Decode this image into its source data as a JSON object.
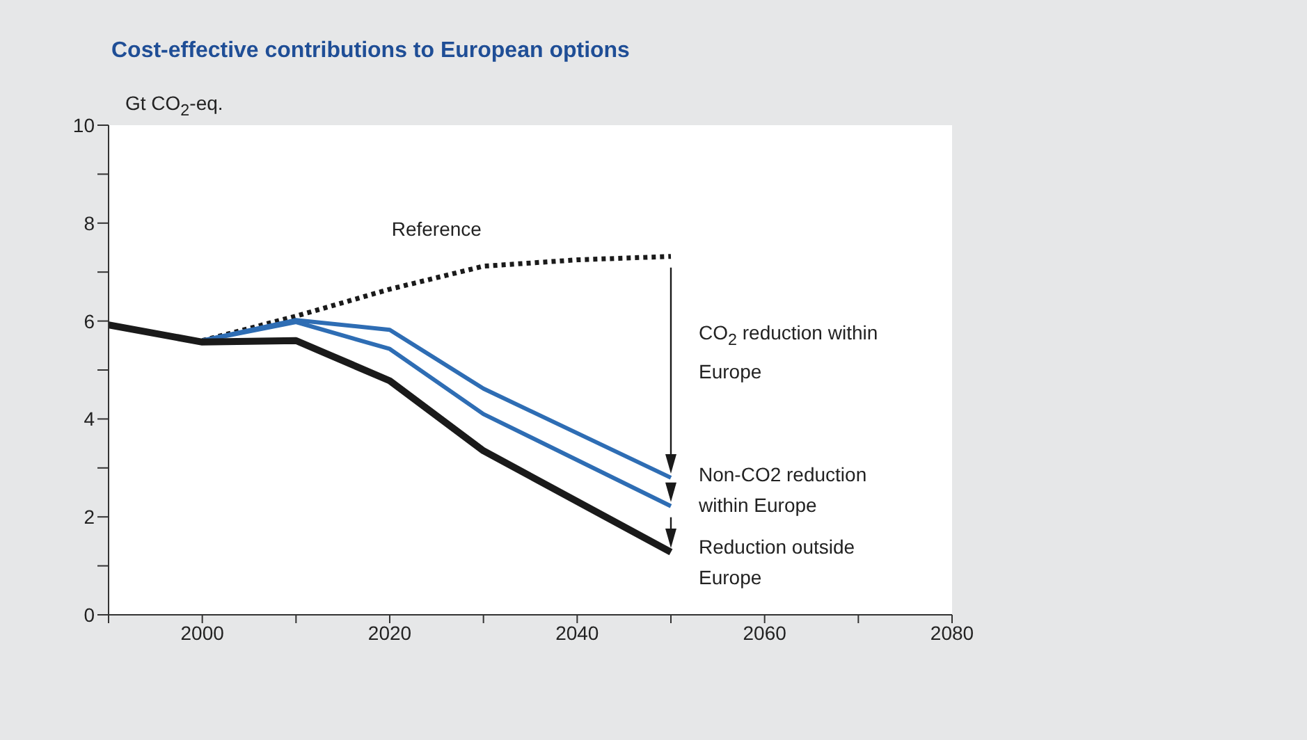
{
  "chart_data": {
    "type": "line",
    "title": "Cost-effective contributions to European options",
    "ylabel": "Gt CO$_{2}$-eq.",
    "xlim": [
      1990,
      2080
    ],
    "xticks": [
      {
        "value": 1990,
        "label": null
      },
      2000,
      {
        "value": 2010,
        "label": null
      },
      2020,
      {
        "value": 2030,
        "label": null
      },
      2040,
      {
        "value": 2050,
        "label": null
      },
      2060,
      {
        "value": 2070,
        "label": null
      },
      2080
    ],
    "ylim": [
      0,
      10
    ],
    "yticks": [
      0,
      {
        "value": 1,
        "label": null
      },
      2,
      {
        "value": 3,
        "label": null
      },
      4,
      {
        "value": 5,
        "label": null
      },
      6,
      {
        "value": 7,
        "label": null
      },
      8,
      {
        "value": 9,
        "label": null
      },
      10
    ],
    "grid": false,
    "legend": false,
    "marker": "none",
    "series": [
      {
        "name": "Reference",
        "color": "#1a1a1a",
        "line_style": "dotted",
        "x": [
          2000,
          2010,
          2020,
          2030,
          2040,
          2050
        ],
        "values": [
          5.6,
          6.1,
          6.65,
          7.12,
          7.25,
          7.32
        ]
      },
      {
        "color": "#2e6db4",
        "line_style": "solid",
        "x": [
          2000,
          2010,
          2020,
          2030,
          2050
        ],
        "values": [
          5.6,
          6.02,
          5.82,
          4.62,
          2.8
        ]
      },
      {
        "color": "#2e6db4",
        "line_style": "solid",
        "x": [
          2000,
          2010,
          2020,
          2030,
          2050
        ],
        "values": [
          5.6,
          5.98,
          5.43,
          4.1,
          2.22
        ]
      },
      {
        "color": "#1a1a1a",
        "line_style": "solid",
        "x": [
          1990,
          2000,
          2010,
          2020,
          2030,
          2050
        ],
        "values": [
          5.92,
          5.57,
          5.6,
          4.78,
          3.35,
          1.28
        ]
      }
    ],
    "annotations": [
      "CO$_{2}$ reduction within Europe",
      "Non-CO2 reduction within Europe",
      "Reduction outside Europe"
    ]
  }
}
